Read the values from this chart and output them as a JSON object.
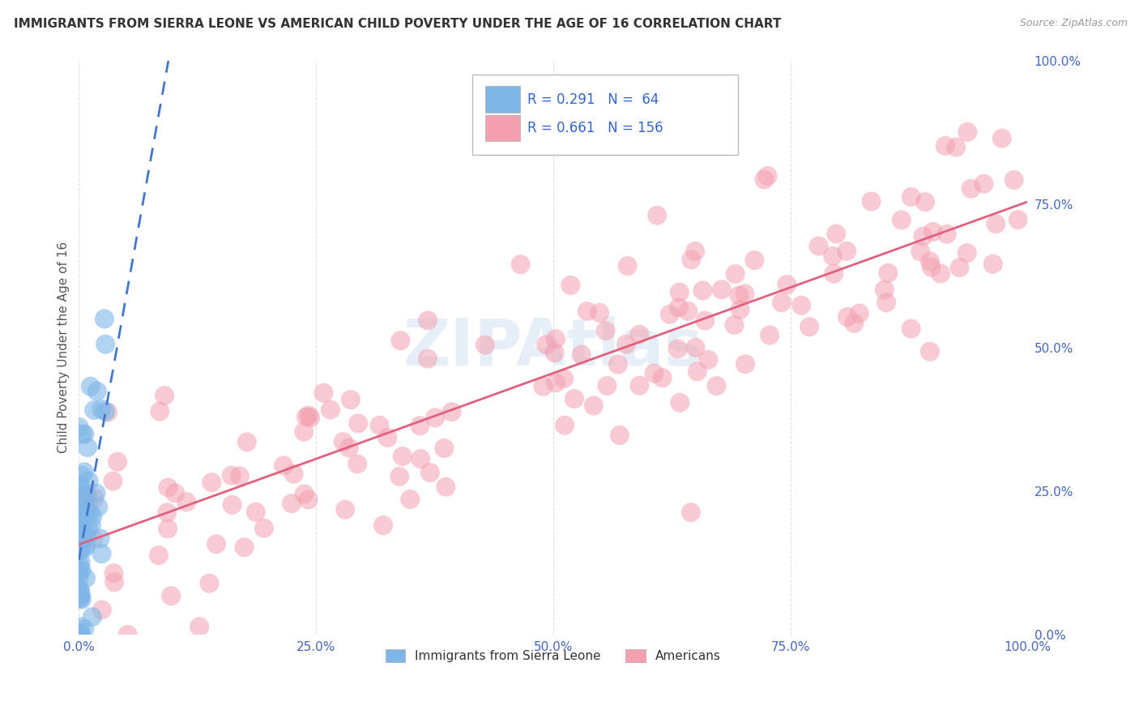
{
  "title": "IMMIGRANTS FROM SIERRA LEONE VS AMERICAN CHILD POVERTY UNDER THE AGE OF 16 CORRELATION CHART",
  "source": "Source: ZipAtlas.com",
  "ylabel": "Child Poverty Under the Age of 16",
  "legend_blue_label": "Immigrants from Sierra Leone",
  "legend_pink_label": "Americans",
  "legend_blue_r": "0.291",
  "legend_blue_n": "64",
  "legend_pink_r": "0.661",
  "legend_pink_n": "156",
  "watermark": "ZIPAtlas",
  "background_color": "#ffffff",
  "scatter_blue_color": "#7EB6E8",
  "scatter_pink_color": "#F4A0B0",
  "line_blue_color": "#4477CC",
  "line_pink_color": "#E06080",
  "grid_color": "#cccccc",
  "axis_color": "#4466BB",
  "legend_r_color": "#3366CC"
}
